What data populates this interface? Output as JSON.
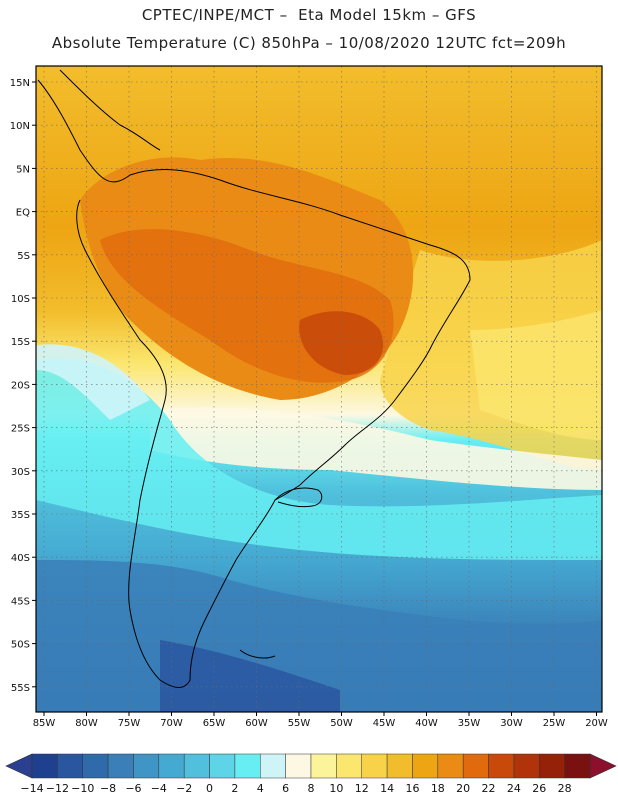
{
  "header": {
    "line1": "CPTEC/INPE/MCT –  Eta Model 15km – GFS",
    "line2": "Absolute Temperature (C) 850hPa – 10/08/2020 12UTC fct=209h"
  },
  "map": {
    "lat_labels": [
      "15N",
      "10N",
      "5N",
      "EQ",
      "5S",
      "10S",
      "15S",
      "20S",
      "25S",
      "30S",
      "35S",
      "40S",
      "45S",
      "50S",
      "55S"
    ],
    "lon_labels": [
      "85W",
      "80W",
      "75W",
      "70W",
      "65W",
      "60W",
      "55W",
      "50W",
      "45W",
      "40W",
      "35W",
      "30W",
      "25W",
      "20W"
    ]
  },
  "colorbar": {
    "labels": [
      "-14",
      "-12",
      "-10",
      "-8",
      "-6",
      "-4",
      "-2",
      "0",
      "2",
      "4",
      "6",
      "8",
      "10",
      "12",
      "14",
      "16",
      "18",
      "20",
      "22",
      "24",
      "26",
      "28"
    ],
    "colors": [
      "#1f3f8f",
      "#2a56a0",
      "#2f6aab",
      "#3a7fb8",
      "#3f95c6",
      "#45aad2",
      "#50c0dc",
      "#5dd5e6",
      "#66eef2",
      "#cff4f8",
      "#fdf8e3",
      "#fcf49a",
      "#fbe66e",
      "#f8d34a",
      "#f2bd2c",
      "#eea513",
      "#e98b15",
      "#e06a0c",
      "#c9490a",
      "#b0330a",
      "#952108",
      "#7a1010"
    ],
    "under_color": "#2a3f8f",
    "over_color": "#8c0f2c"
  }
}
